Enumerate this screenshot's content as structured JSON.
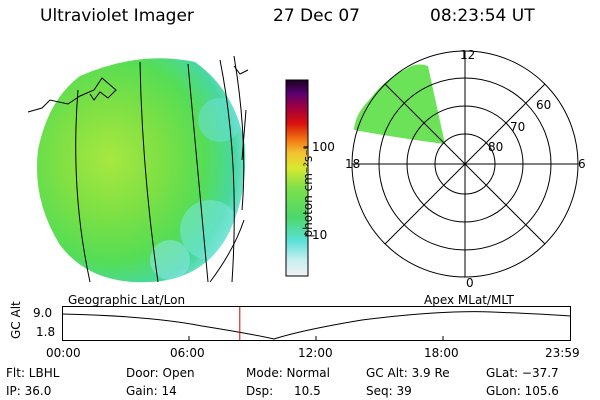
{
  "header": {
    "title": "Ultraviolet Imager",
    "date": "27 Dec 07",
    "time": "08:23:54 UT"
  },
  "colorbar": {
    "label": "photon cm⁻²s⁻¹",
    "ticks": [
      "100",
      "10"
    ]
  },
  "polar": {
    "mlt_labels": {
      "top": "12",
      "left": "18",
      "right": "6",
      "bottom": "0"
    },
    "lat_labels": [
      "60",
      "70",
      "80"
    ]
  },
  "strip": {
    "ylabel": "GC Alt",
    "yticks": [
      "9.0",
      "1.8"
    ],
    "left_title": "Geographic Lat/Lon",
    "right_title": "Apex MLat/MLT",
    "xticks": [
      "00:00",
      "06:00",
      "12:00",
      "18:00",
      "23:59"
    ],
    "current_time_hours": 8.4
  },
  "info": {
    "r1": [
      "Flt: LBHL",
      "Door: Open",
      "Mode: Normal",
      "GC Alt: 3.9 Re",
      "GLat: −37.7"
    ],
    "r2": [
      "IP: 36.0",
      "Gain: 14",
      "Dsp:",
      "10.5",
      "Seq: 39",
      "GLon: 105.6"
    ]
  },
  "colors": {
    "disk_green": "#5fe04a",
    "disk_cyan": "#6ee0d8",
    "marker": "#cc0000"
  }
}
